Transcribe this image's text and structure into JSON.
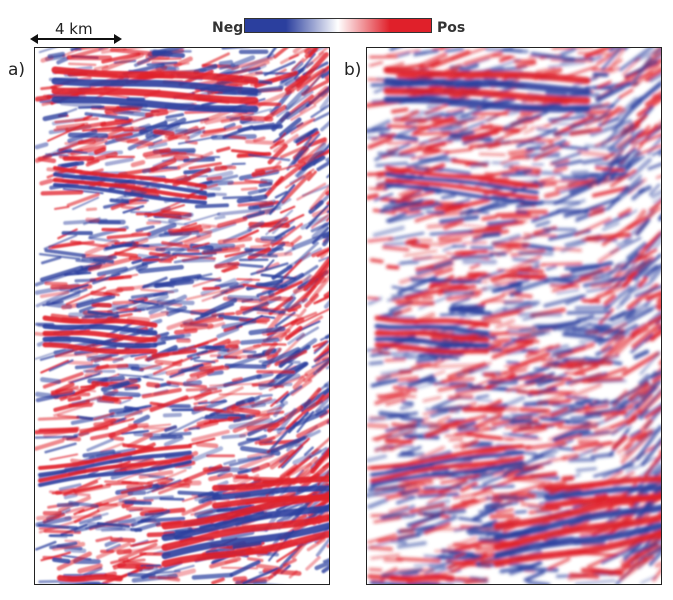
{
  "scale_bar": {
    "label": "4 km"
  },
  "colorbar": {
    "neg_label": "Neg",
    "pos_label": "Pos",
    "neg_color": "#2b3f9e",
    "mid_color": "#ffffff",
    "pos_color": "#e0202a"
  },
  "panels": [
    {
      "label": "a)"
    },
    {
      "label": "b)"
    }
  ]
}
